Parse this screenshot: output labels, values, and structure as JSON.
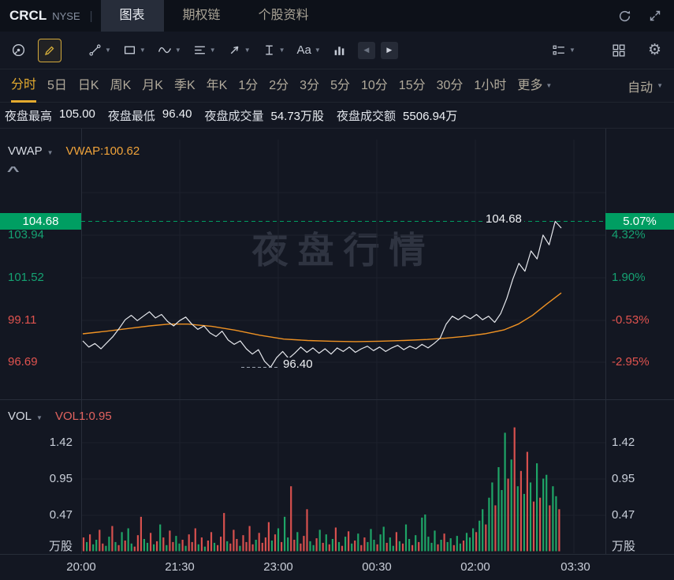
{
  "header": {
    "symbol": "CRCL",
    "exchange": "NYSE",
    "tabs": [
      {
        "label": "图表",
        "active": true
      },
      {
        "label": "期权链",
        "active": false
      },
      {
        "label": "个股资料",
        "active": false
      }
    ]
  },
  "toolbar": {
    "text_tool_label": "Aa"
  },
  "timeframes": {
    "items": [
      "分时",
      "5日",
      "日K",
      "周K",
      "月K",
      "季K",
      "年K",
      "1分",
      "2分",
      "3分",
      "5分",
      "10分",
      "15分",
      "30分",
      "1小时"
    ],
    "active": "分时",
    "more_label": "更多",
    "auto_label": "自动"
  },
  "stats": [
    {
      "label": "夜盘最高",
      "value": "105.00"
    },
    {
      "label": "夜盘最低",
      "value": "96.40"
    },
    {
      "label": "夜盘成交量",
      "value": "54.73万股"
    },
    {
      "label": "夜盘成交额",
      "value": "5506.94万"
    }
  ],
  "indicators": {
    "vwap_name": "VWAP",
    "vwap_value": "VWAP:100.62",
    "vol_name": "VOL",
    "vol_value": "VOL1:0.95"
  },
  "watermark": "夜盘行情",
  "icons": {
    "caret": "▼",
    "collapse": "^",
    "gear": "⚙",
    "prev": "◀",
    "next": "▶"
  },
  "colors": {
    "green": "#009e62",
    "green_text": "#15a272",
    "red_text": "#e0534f",
    "vol_green": "#1ea567",
    "vol_red": "#d7504e",
    "vwap": "#ef9223",
    "price_line": "#e6e8ed",
    "gold": "#e3aa2f",
    "grid": "#1c212c",
    "border": "#272d39"
  },
  "chart_data": {
    "type": "line",
    "current_price": 104.68,
    "current_change_pct": "5.07%",
    "session_high": 105.0,
    "session_low": 96.4,
    "vwap_last": 100.62,
    "annotations": {
      "high_label": "104.68",
      "low_label": "96.40"
    },
    "price_axis": {
      "labels": [
        "104.68",
        "103.94",
        "101.52",
        "99.11",
        "96.69"
      ],
      "values": [
        104.68,
        103.94,
        101.52,
        99.11,
        96.69
      ],
      "colors": [
        "g",
        "g",
        "g",
        "r",
        "r"
      ],
      "boxed_index": 0
    },
    "percent_axis": {
      "labels": [
        "5.07%",
        "4.32%",
        "1.90%",
        "-0.53%",
        "-2.95%"
      ],
      "colors": [
        "g",
        "g",
        "g",
        "r",
        "r"
      ],
      "boxed_index": 0
    },
    "volume_axis": {
      "labels": [
        "1.42",
        "0.95",
        "0.47"
      ],
      "values": [
        1.42,
        0.95,
        0.47
      ],
      "unit": "万股"
    },
    "x_ticks": [
      "20:00",
      "21:30",
      "23:00",
      "00:30",
      "02:00",
      "03:30"
    ],
    "price_series": [
      97.9,
      97.55,
      97.75,
      97.45,
      97.8,
      98.15,
      98.6,
      99.1,
      99.35,
      99.05,
      99.3,
      99.55,
      99.2,
      99.4,
      99.0,
      98.75,
      99.05,
      99.25,
      98.85,
      98.55,
      98.75,
      98.35,
      98.15,
      98.45,
      97.95,
      97.7,
      97.9,
      97.45,
      97.15,
      97.4,
      96.75,
      96.4,
      96.95,
      97.3,
      96.9,
      97.2,
      97.55,
      97.25,
      97.5,
      97.2,
      97.45,
      97.15,
      97.5,
      97.3,
      97.55,
      97.25,
      97.45,
      97.6,
      97.35,
      97.55,
      97.3,
      97.5,
      97.65,
      97.4,
      97.6,
      97.45,
      97.7,
      97.5,
      97.75,
      98.05,
      98.85,
      99.3,
      99.1,
      99.35,
      99.15,
      99.4,
      99.1,
      99.3,
      98.95,
      99.45,
      100.3,
      101.4,
      102.3,
      101.85,
      103.0,
      102.55,
      103.9,
      103.35,
      104.68,
      104.3
    ],
    "vwap_series": [
      [
        0.0,
        98.3
      ],
      [
        0.05,
        98.45
      ],
      [
        0.1,
        98.62
      ],
      [
        0.14,
        98.75
      ],
      [
        0.18,
        98.85
      ],
      [
        0.22,
        98.85
      ],
      [
        0.27,
        98.72
      ],
      [
        0.32,
        98.5
      ],
      [
        0.37,
        98.22
      ],
      [
        0.42,
        98.0
      ],
      [
        0.47,
        97.92
      ],
      [
        0.52,
        97.88
      ],
      [
        0.57,
        97.86
      ],
      [
        0.62,
        97.88
      ],
      [
        0.67,
        97.92
      ],
      [
        0.72,
        97.98
      ],
      [
        0.76,
        98.06
      ],
      [
        0.8,
        98.16
      ],
      [
        0.84,
        98.3
      ],
      [
        0.88,
        98.52
      ],
      [
        0.91,
        98.85
      ],
      [
        0.94,
        99.35
      ],
      [
        0.97,
        100.0
      ],
      [
        1.0,
        100.62
      ]
    ],
    "volume_bars": [
      [
        0.18,
        "r"
      ],
      [
        0.12,
        "g"
      ],
      [
        0.22,
        "r"
      ],
      [
        0.09,
        "g"
      ],
      [
        0.15,
        "g"
      ],
      [
        0.28,
        "r"
      ],
      [
        0.1,
        "r"
      ],
      [
        0.07,
        "g"
      ],
      [
        0.19,
        "g"
      ],
      [
        0.33,
        "r"
      ],
      [
        0.12,
        "g"
      ],
      [
        0.08,
        "r"
      ],
      [
        0.25,
        "g"
      ],
      [
        0.14,
        "r"
      ],
      [
        0.3,
        "g"
      ],
      [
        0.1,
        "g"
      ],
      [
        0.06,
        "r"
      ],
      [
        0.21,
        "r"
      ],
      [
        0.45,
        "r"
      ],
      [
        0.16,
        "g"
      ],
      [
        0.11,
        "g"
      ],
      [
        0.24,
        "r"
      ],
      [
        0.09,
        "g"
      ],
      [
        0.13,
        "r"
      ],
      [
        0.35,
        "g"
      ],
      [
        0.18,
        "r"
      ],
      [
        0.08,
        "g"
      ],
      [
        0.27,
        "r"
      ],
      [
        0.12,
        "r"
      ],
      [
        0.2,
        "g"
      ],
      [
        0.1,
        "g"
      ],
      [
        0.15,
        "r"
      ],
      [
        0.07,
        "g"
      ],
      [
        0.22,
        "r"
      ],
      [
        0.12,
        "r"
      ],
      [
        0.3,
        "r"
      ],
      [
        0.09,
        "g"
      ],
      [
        0.18,
        "r"
      ],
      [
        0.06,
        "g"
      ],
      [
        0.14,
        "r"
      ],
      [
        0.25,
        "r"
      ],
      [
        0.11,
        "g"
      ],
      [
        0.08,
        "r"
      ],
      [
        0.19,
        "r"
      ],
      [
        0.5,
        "r"
      ],
      [
        0.13,
        "g"
      ],
      [
        0.1,
        "r"
      ],
      [
        0.28,
        "r"
      ],
      [
        0.16,
        "r"
      ],
      [
        0.07,
        "g"
      ],
      [
        0.21,
        "r"
      ],
      [
        0.12,
        "r"
      ],
      [
        0.33,
        "r"
      ],
      [
        0.09,
        "r"
      ],
      [
        0.15,
        "g"
      ],
      [
        0.24,
        "r"
      ],
      [
        0.11,
        "r"
      ],
      [
        0.18,
        "r"
      ],
      [
        0.38,
        "r"
      ],
      [
        0.14,
        "g"
      ],
      [
        0.22,
        "r"
      ],
      [
        0.3,
        "g"
      ],
      [
        0.12,
        "r"
      ],
      [
        0.45,
        "g"
      ],
      [
        0.18,
        "g"
      ],
      [
        0.85,
        "r"
      ],
      [
        0.15,
        "r"
      ],
      [
        0.25,
        "g"
      ],
      [
        0.1,
        "r"
      ],
      [
        0.2,
        "r"
      ],
      [
        0.55,
        "r"
      ],
      [
        0.13,
        "g"
      ],
      [
        0.08,
        "g"
      ],
      [
        0.17,
        "r"
      ],
      [
        0.28,
        "g"
      ],
      [
        0.11,
        "r"
      ],
      [
        0.22,
        "g"
      ],
      [
        0.09,
        "r"
      ],
      [
        0.16,
        "g"
      ],
      [
        0.31,
        "r"
      ],
      [
        0.12,
        "g"
      ],
      [
        0.07,
        "r"
      ],
      [
        0.19,
        "g"
      ],
      [
        0.26,
        "r"
      ],
      [
        0.1,
        "g"
      ],
      [
        0.14,
        "r"
      ],
      [
        0.23,
        "g"
      ],
      [
        0.08,
        "r"
      ],
      [
        0.18,
        "r"
      ],
      [
        0.12,
        "g"
      ],
      [
        0.29,
        "g"
      ],
      [
        0.15,
        "g"
      ],
      [
        0.09,
        "r"
      ],
      [
        0.22,
        "g"
      ],
      [
        0.32,
        "g"
      ],
      [
        0.11,
        "r"
      ],
      [
        0.18,
        "g"
      ],
      [
        0.07,
        "g"
      ],
      [
        0.25,
        "r"
      ],
      [
        0.13,
        "g"
      ],
      [
        0.1,
        "r"
      ],
      [
        0.35,
        "g"
      ],
      [
        0.16,
        "g"
      ],
      [
        0.08,
        "r"
      ],
      [
        0.21,
        "g"
      ],
      [
        0.12,
        "r"
      ],
      [
        0.44,
        "g"
      ],
      [
        0.48,
        "g"
      ],
      [
        0.19,
        "g"
      ],
      [
        0.11,
        "g"
      ],
      [
        0.27,
        "g"
      ],
      [
        0.09,
        "r"
      ],
      [
        0.15,
        "g"
      ],
      [
        0.23,
        "r"
      ],
      [
        0.12,
        "g"
      ],
      [
        0.17,
        "g"
      ],
      [
        0.08,
        "r"
      ],
      [
        0.2,
        "g"
      ],
      [
        0.1,
        "g"
      ],
      [
        0.14,
        "r"
      ],
      [
        0.24,
        "g"
      ],
      [
        0.18,
        "g"
      ],
      [
        0.3,
        "g"
      ],
      [
        0.25,
        "r"
      ],
      [
        0.4,
        "g"
      ],
      [
        0.55,
        "g"
      ],
      [
        0.35,
        "r"
      ],
      [
        0.7,
        "g"
      ],
      [
        0.9,
        "g"
      ],
      [
        0.6,
        "r"
      ],
      [
        1.1,
        "g"
      ],
      [
        0.8,
        "g"
      ],
      [
        1.55,
        "g"
      ],
      [
        0.95,
        "r"
      ],
      [
        1.2,
        "g"
      ],
      [
        1.62,
        "r"
      ],
      [
        0.85,
        "g"
      ],
      [
        1.05,
        "r"
      ],
      [
        0.75,
        "g"
      ],
      [
        1.3,
        "r"
      ],
      [
        0.9,
        "g"
      ],
      [
        0.65,
        "r"
      ],
      [
        1.15,
        "g"
      ],
      [
        0.7,
        "r"
      ],
      [
        0.95,
        "g"
      ],
      [
        1.0,
        "g"
      ],
      [
        0.6,
        "r"
      ],
      [
        0.85,
        "g"
      ],
      [
        0.72,
        "g"
      ],
      [
        0.55,
        "r"
      ]
    ]
  }
}
